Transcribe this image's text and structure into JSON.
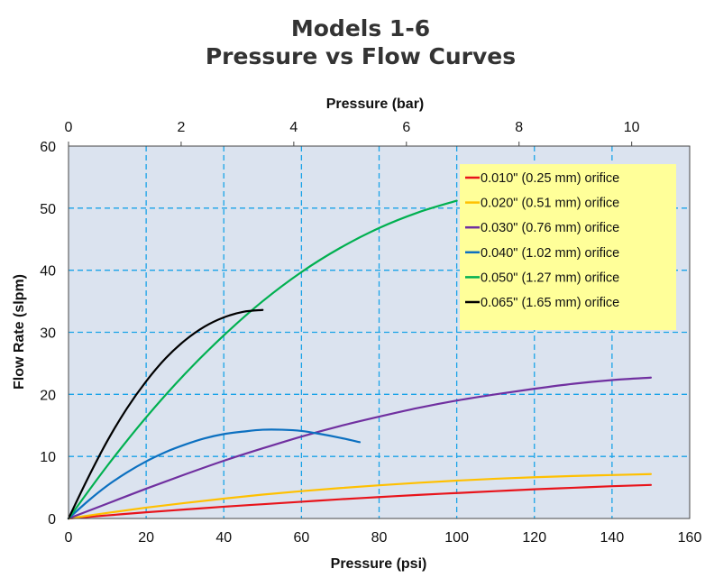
{
  "chart_data": {
    "type": "line",
    "title": [
      "Models 1-6",
      "Pressure vs Flow Curves"
    ],
    "xlabel": "Pressure (psi)",
    "x2label": "Pressure (bar)",
    "ylabel": "Flow Rate (slpm)",
    "xlim": [
      0,
      160
    ],
    "x2lim": [
      0,
      11.03
    ],
    "ylim": [
      0,
      60
    ],
    "xticks": [
      "0",
      "20",
      "40",
      "60",
      "80",
      "100",
      "120",
      "140",
      "160"
    ],
    "x2ticks": [
      "0",
      "2",
      "4",
      "6",
      "8",
      "10"
    ],
    "yticks": [
      "0",
      "10",
      "20",
      "30",
      "40",
      "50",
      "60"
    ],
    "grid": true,
    "legend_position": "top-right",
    "plot_background": "#dbe3ef",
    "series": [
      {
        "name": "0.010\" (0.25 mm) orifice",
        "color": "#e8141b",
        "x": [
          0,
          10,
          20,
          30,
          40,
          50,
          60,
          70,
          80,
          90,
          100,
          110,
          120,
          130,
          140,
          150
        ],
        "y": [
          0,
          0.5,
          1.0,
          1.45,
          1.9,
          2.3,
          2.7,
          3.1,
          3.45,
          3.8,
          4.1,
          4.4,
          4.7,
          4.95,
          5.2,
          5.4
        ]
      },
      {
        "name": "0.020\" (0.51 mm) orifice",
        "color": "#ffc000",
        "x": [
          0,
          10,
          20,
          30,
          40,
          50,
          60,
          70,
          80,
          90,
          100,
          110,
          120,
          130,
          140,
          150
        ],
        "y": [
          0,
          0.9,
          1.75,
          2.5,
          3.2,
          3.85,
          4.4,
          4.9,
          5.35,
          5.75,
          6.1,
          6.4,
          6.65,
          6.85,
          7.0,
          7.15
        ]
      },
      {
        "name": "0.030\" (0.76 mm) orifice",
        "color": "#7030a0",
        "x": [
          0,
          10,
          20,
          30,
          40,
          50,
          60,
          70,
          80,
          90,
          100,
          110,
          120,
          130,
          140,
          150
        ],
        "y": [
          0,
          2.4,
          4.8,
          7.1,
          9.3,
          11.3,
          13.2,
          14.9,
          16.4,
          17.8,
          19.0,
          20.0,
          20.9,
          21.7,
          22.3,
          22.7
        ]
      },
      {
        "name": "0.040\" (1.02 mm) orifice",
        "color": "#0c70c0",
        "x": [
          0,
          5,
          10,
          15,
          20,
          25,
          30,
          35,
          40,
          45,
          50,
          55,
          60,
          65,
          70,
          75
        ],
        "y": [
          0,
          2.8,
          5.3,
          7.4,
          9.2,
          10.7,
          11.9,
          12.9,
          13.6,
          14.0,
          14.3,
          14.3,
          14.1,
          13.6,
          13.0,
          12.3
        ]
      },
      {
        "name": "0.050\" (1.27 mm) orifice",
        "color": "#00b050",
        "x": [
          0,
          10,
          20,
          30,
          40,
          50,
          60,
          70,
          80,
          90,
          100
        ],
        "y": [
          0,
          8.5,
          16.3,
          23.3,
          29.5,
          35.0,
          39.7,
          43.6,
          46.8,
          49.3,
          51.2
        ]
      },
      {
        "name": "0.065\" (1.65 mm) orifice",
        "color": "#000000",
        "x": [
          0,
          5,
          10,
          15,
          20,
          25,
          30,
          35,
          40,
          45,
          50
        ],
        "y": [
          0,
          6.5,
          12.5,
          17.7,
          22.1,
          25.8,
          28.7,
          30.9,
          32.4,
          33.3,
          33.6
        ]
      }
    ]
  }
}
